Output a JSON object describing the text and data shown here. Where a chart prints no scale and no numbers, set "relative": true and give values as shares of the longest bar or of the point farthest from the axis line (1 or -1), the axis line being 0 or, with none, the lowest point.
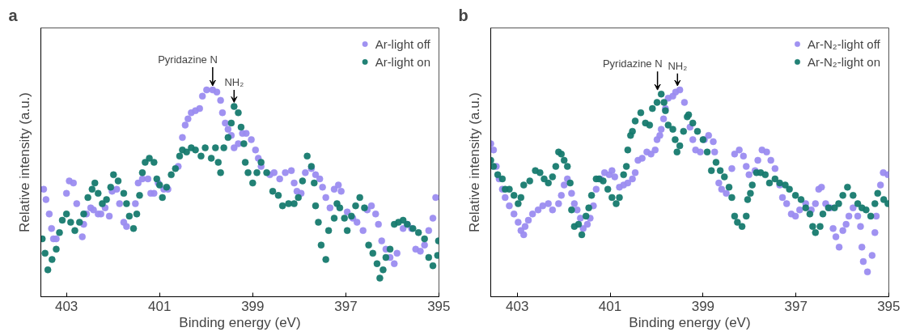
{
  "chart_data": [
    {
      "type": "scatter",
      "title": "a",
      "xlabel": "Binding energy (eV)",
      "ylabel": "Relative intensity (a.u.)",
      "relative": true,
      "xlim": [
        403.55,
        395
      ],
      "xticks": [
        403,
        401,
        399,
        397,
        395
      ],
      "marker": "circle",
      "legend": "top right",
      "grid": false,
      "annotations": [
        {
          "text": "Pyridazine N",
          "x": 399.86,
          "y": 1.0
        },
        {
          "text": "NH₂",
          "x": 399.4,
          "y": 0.92
        }
      ],
      "series": [
        {
          "name": "Ar-light off",
          "color": "#9b8cf0",
          "x": [
            403.49,
            403.44,
            403.37,
            403.32,
            403.28,
            403.22,
            403.0,
            402.94,
            402.85,
            402.78,
            402.66,
            402.63,
            402.57,
            402.48,
            402.42,
            402.32,
            402.26,
            402.17,
            402.08,
            402.02,
            401.92,
            401.86,
            401.77,
            401.71,
            401.52,
            401.46,
            401.37,
            401.25,
            401.19,
            401.12,
            401.03,
            400.91,
            400.82,
            400.6,
            400.51,
            400.45,
            400.39,
            400.32,
            400.23,
            400.14,
            400.08,
            399.99,
            399.86,
            399.77,
            399.69,
            399.65,
            399.59,
            399.53,
            399.46,
            399.4,
            399.31,
            399.22,
            399.14,
            399.03,
            398.94,
            398.88,
            398.82,
            398.63,
            398.54,
            398.42,
            398.3,
            398.17,
            398.11,
            398.05,
            397.96,
            397.87,
            397.74,
            397.65,
            397.56,
            397.5,
            397.43,
            397.34,
            397.25,
            397.16,
            397.1,
            396.97,
            396.85,
            396.76,
            396.63,
            396.54,
            396.45,
            396.36,
            396.3,
            396.23,
            396.14,
            396.05,
            395.96,
            395.9,
            395.77,
            395.68,
            395.59,
            395.5,
            395.4,
            395.31,
            395.22,
            395.13,
            395.07
          ],
          "values": [
            0.52,
            0.47,
            0.4,
            0.33,
            0.28,
            0.28,
            0.5,
            0.56,
            0.55,
            0.45,
            0.29,
            0.35,
            0.4,
            0.43,
            0.42,
            0.4,
            0.4,
            0.43,
            0.39,
            0.51,
            0.52,
            0.45,
            0.36,
            0.34,
            0.45,
            0.55,
            0.57,
            0.57,
            0.5,
            0.5,
            0.55,
            0.52,
            0.52,
            0.63,
            0.77,
            0.83,
            0.86,
            0.89,
            0.9,
            0.91,
            0.97,
            1.0,
            1.0,
            0.99,
            0.95,
            0.89,
            0.84,
            0.81,
            0.78,
            0.72,
            0.74,
            0.79,
            0.79,
            0.76,
            0.71,
            0.67,
            0.63,
            0.59,
            0.6,
            0.57,
            0.6,
            0.61,
            0.55,
            0.51,
            0.5,
            0.6,
            0.62,
            0.59,
            0.57,
            0.53,
            0.48,
            0.43,
            0.52,
            0.54,
            0.51,
            0.41,
            0.38,
            0.36,
            0.32,
            0.42,
            0.44,
            0.4,
            0.35,
            0.27,
            0.23,
            0.19,
            0.16,
            0.21,
            0.33,
            0.35,
            0.33,
            0.23,
            0.22,
            0.25,
            0.32,
            0.38,
            0.48
          ]
        },
        {
          "name": "Ar-light on",
          "color": "#167a6e",
          "x": [
            403.52,
            403.46,
            403.4,
            403.31,
            403.22,
            403.15,
            403.09,
            403.0,
            402.91,
            402.82,
            402.72,
            402.63,
            402.54,
            402.45,
            402.39,
            402.32,
            402.23,
            402.14,
            402.05,
            401.99,
            401.89,
            401.77,
            401.71,
            401.65,
            401.56,
            401.49,
            401.43,
            401.37,
            401.31,
            401.22,
            401.12,
            401.06,
            401.0,
            400.94,
            400.85,
            400.75,
            400.66,
            400.57,
            400.51,
            400.42,
            400.32,
            400.23,
            400.11,
            400.02,
            399.89,
            399.8,
            399.74,
            399.69,
            399.62,
            399.53,
            399.46,
            399.4,
            399.31,
            399.25,
            399.19,
            399.16,
            399.1,
            399.0,
            398.91,
            398.82,
            398.7,
            398.57,
            398.45,
            398.36,
            398.23,
            398.11,
            398.02,
            397.93,
            397.83,
            397.74,
            397.68,
            397.65,
            397.59,
            397.53,
            397.43,
            397.37,
            397.25,
            397.19,
            397.13,
            397.03,
            396.97,
            396.88,
            396.79,
            396.7,
            396.6,
            396.51,
            396.42,
            396.33,
            396.27,
            396.2,
            396.14,
            396.05,
            395.96,
            395.87,
            395.77,
            395.68,
            395.56,
            395.44,
            395.31,
            395.22,
            395.13,
            395.03,
            395.01
          ],
          "values": [
            0.28,
            0.21,
            0.13,
            0.18,
            0.23,
            0.31,
            0.37,
            0.4,
            0.36,
            0.32,
            0.36,
            0.4,
            0.48,
            0.52,
            0.55,
            0.5,
            0.45,
            0.47,
            0.53,
            0.59,
            0.56,
            0.5,
            0.45,
            0.39,
            0.33,
            0.4,
            0.49,
            0.6,
            0.65,
            0.67,
            0.65,
            0.57,
            0.54,
            0.48,
            0.53,
            0.59,
            0.62,
            0.68,
            0.71,
            0.7,
            0.72,
            0.71,
            0.68,
            0.72,
            0.67,
            0.72,
            0.65,
            0.6,
            0.72,
            0.77,
            0.84,
            0.92,
            0.89,
            0.82,
            0.74,
            0.65,
            0.6,
            0.55,
            0.6,
            0.65,
            0.6,
            0.51,
            0.49,
            0.44,
            0.45,
            0.45,
            0.48,
            0.56,
            0.68,
            0.63,
            0.55,
            0.44,
            0.36,
            0.25,
            0.18,
            0.32,
            0.38,
            0.45,
            0.43,
            0.38,
            0.32,
            0.39,
            0.44,
            0.48,
            0.43,
            0.25,
            0.21,
            0.16,
            0.09,
            0.13,
            0.19,
            0.23,
            0.35,
            0.36,
            0.37,
            0.35,
            0.33,
            0.31,
            0.28,
            0.19,
            0.15,
            0.2,
            0.27
          ]
        }
      ]
    },
    {
      "type": "scatter",
      "title": "b",
      "xlabel": "Binding energy (eV)",
      "ylabel": "Relative intensity (a.u.)",
      "relative": true,
      "xlim": [
        403.57,
        395
      ],
      "xticks": [
        403,
        401,
        399,
        397,
        395
      ],
      "marker": "circle",
      "legend": "top right",
      "grid": false,
      "annotations": [
        {
          "text": "Pyridazine N",
          "x": 399.98,
          "y": 0.98
        },
        {
          "text": "NH₂",
          "x": 399.55,
          "y": 1.0
        }
      ],
      "series": [
        {
          "name": "Ar-N₂-light off",
          "color": "#9b8cf0",
          "x": [
            403.57,
            403.51,
            403.45,
            403.39,
            403.32,
            403.26,
            403.17,
            403.07,
            402.98,
            402.92,
            402.86,
            402.83,
            402.76,
            402.67,
            402.55,
            402.45,
            402.33,
            402.24,
            402.11,
            402.05,
            401.99,
            401.92,
            401.83,
            401.77,
            401.71,
            401.64,
            401.58,
            401.49,
            401.43,
            401.36,
            401.3,
            401.21,
            401.12,
            401.02,
            400.96,
            400.9,
            400.8,
            400.71,
            400.62,
            400.52,
            400.46,
            400.4,
            400.31,
            400.21,
            400.12,
            400.03,
            399.99,
            399.93,
            399.9,
            399.85,
            399.81,
            399.75,
            399.65,
            399.59,
            399.5,
            399.4,
            399.28,
            399.22,
            399.16,
            399.06,
            398.97,
            398.88,
            398.78,
            398.75,
            398.66,
            398.6,
            398.5,
            398.38,
            398.32,
            398.22,
            398.13,
            398.07,
            398.01,
            397.88,
            397.82,
            397.73,
            397.63,
            397.54,
            397.45,
            397.35,
            397.29,
            397.2,
            397.1,
            397.01,
            396.92,
            396.79,
            396.67,
            396.58,
            396.51,
            396.45,
            396.36,
            396.26,
            396.2,
            396.14,
            396.07,
            395.99,
            395.92,
            395.86,
            395.77,
            395.67,
            395.61,
            395.58,
            395.55,
            395.46,
            395.36,
            395.3,
            395.27,
            395.18,
            395.12,
            395.02
          ],
          "values": [
            0.74,
            0.71,
            0.63,
            0.57,
            0.52,
            0.48,
            0.44,
            0.4,
            0.36,
            0.32,
            0.3,
            0.34,
            0.37,
            0.4,
            0.42,
            0.44,
            0.45,
            0.42,
            0.45,
            0.49,
            0.54,
            0.57,
            0.5,
            0.45,
            0.42,
            0.38,
            0.33,
            0.35,
            0.38,
            0.44,
            0.52,
            0.57,
            0.6,
            0.59,
            0.61,
            0.58,
            0.53,
            0.54,
            0.55,
            0.57,
            0.6,
            0.66,
            0.67,
            0.7,
            0.69,
            0.71,
            0.76,
            0.78,
            0.81,
            0.86,
            0.91,
            0.96,
            0.97,
            0.99,
            1.0,
            0.94,
            0.82,
            0.76,
            0.71,
            0.7,
            0.76,
            0.78,
            0.75,
            0.7,
            0.55,
            0.52,
            0.5,
            0.62,
            0.69,
            0.71,
            0.68,
            0.63,
            0.59,
            0.61,
            0.66,
            0.71,
            0.7,
            0.66,
            0.62,
            0.54,
            0.48,
            0.45,
            0.4,
            0.39,
            0.42,
            0.45,
            0.42,
            0.45,
            0.52,
            0.53,
            0.45,
            0.43,
            0.33,
            0.29,
            0.24,
            0.32,
            0.35,
            0.39,
            0.43,
            0.39,
            0.34,
            0.24,
            0.17,
            0.12,
            0.2,
            0.31,
            0.39,
            0.54,
            0.6,
            0.59
          ]
        },
        {
          "name": "Ar-N₂-light on",
          "color": "#167a6e",
          "x": [
            403.57,
            403.51,
            403.42,
            403.32,
            403.26,
            403.17,
            403.07,
            402.98,
            402.92,
            402.86,
            402.73,
            402.61,
            402.51,
            402.42,
            402.33,
            402.24,
            402.17,
            402.11,
            402.05,
            401.99,
            401.92,
            401.86,
            401.83,
            401.77,
            401.68,
            401.61,
            401.52,
            401.46,
            401.4,
            401.3,
            401.24,
            401.15,
            401.05,
            400.96,
            400.87,
            400.8,
            400.71,
            400.65,
            400.62,
            400.56,
            400.52,
            400.46,
            400.34,
            400.24,
            400.15,
            400.09,
            399.99,
            399.9,
            399.84,
            399.81,
            399.75,
            399.65,
            399.6,
            399.56,
            399.5,
            399.42,
            399.34,
            399.31,
            399.22,
            399.12,
            399.0,
            398.91,
            398.82,
            398.72,
            398.63,
            398.54,
            398.44,
            398.38,
            398.32,
            398.26,
            398.16,
            398.07,
            398.04,
            397.98,
            397.94,
            397.85,
            397.76,
            397.66,
            397.57,
            397.45,
            397.35,
            397.23,
            397.14,
            397.01,
            396.89,
            396.79,
            396.7,
            396.64,
            396.58,
            396.48,
            396.42,
            396.3,
            396.17,
            396.08,
            395.99,
            395.89,
            395.77,
            395.67,
            395.58,
            395.49,
            395.39,
            395.3,
            395.24,
            395.11,
            395.02
          ],
          "values": [
            0.66,
            0.63,
            0.59,
            0.57,
            0.52,
            0.52,
            0.49,
            0.45,
            0.48,
            0.54,
            0.56,
            0.61,
            0.6,
            0.57,
            0.55,
            0.58,
            0.63,
            0.7,
            0.69,
            0.66,
            0.63,
            0.55,
            0.42,
            0.34,
            0.35,
            0.3,
            0.39,
            0.43,
            0.49,
            0.57,
            0.57,
            0.56,
            0.52,
            0.48,
            0.45,
            0.48,
            0.59,
            0.63,
            0.71,
            0.78,
            0.8,
            0.85,
            0.89,
            0.84,
            0.83,
            0.91,
            0.94,
            0.98,
            0.94,
            0.9,
            0.83,
            0.81,
            0.76,
            0.7,
            0.73,
            0.8,
            0.87,
            0.88,
            0.84,
            0.8,
            0.76,
            0.7,
            0.61,
            0.65,
            0.61,
            0.58,
            0.53,
            0.48,
            0.39,
            0.36,
            0.34,
            0.39,
            0.47,
            0.5,
            0.54,
            0.6,
            0.6,
            0.59,
            0.55,
            0.57,
            0.55,
            0.54,
            0.52,
            0.49,
            0.47,
            0.43,
            0.4,
            0.34,
            0.31,
            0.34,
            0.4,
            0.43,
            0.43,
            0.45,
            0.49,
            0.53,
            0.49,
            0.45,
            0.43,
            0.42,
            0.39,
            0.45,
            0.5,
            0.47,
            0.45
          ]
        }
      ]
    }
  ]
}
